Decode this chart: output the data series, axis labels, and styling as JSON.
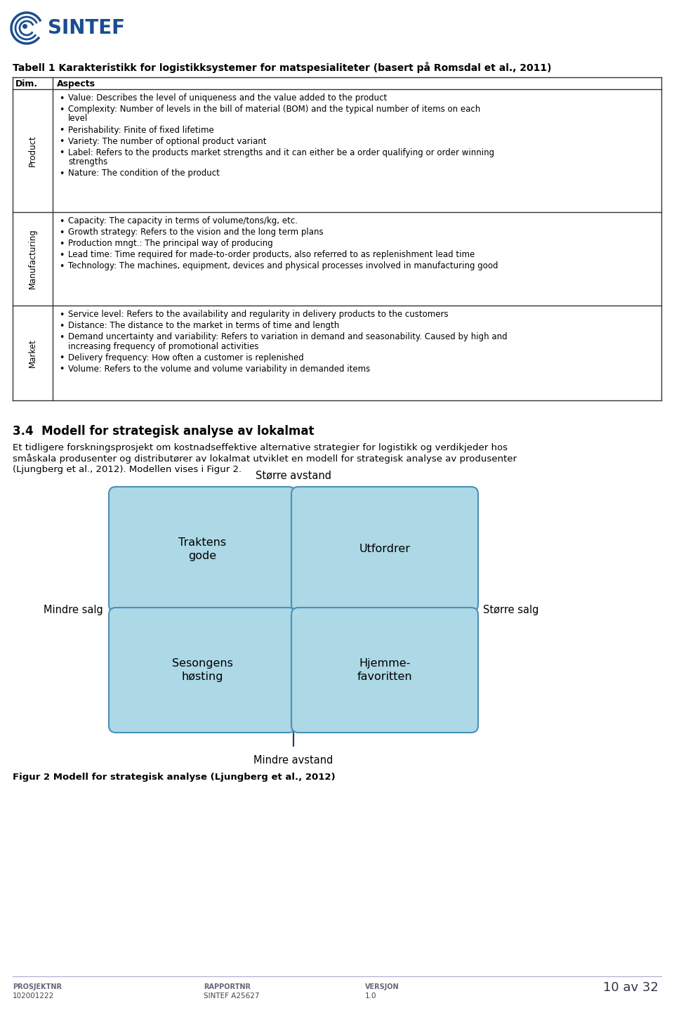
{
  "bg_color": "#ffffff",
  "page_width": 9.6,
  "page_height": 14.55,
  "table_title": "Tabell 1 Karakteristikk for logistikksystemer for matspesialiteter (basert på Romsdal et al., 2011)",
  "table_headers": [
    "Dim.",
    "Aspects"
  ],
  "table_rows": [
    {
      "dim": "Product",
      "items": [
        "Value: Describes the level of uniqueness and the value added to the product",
        "Complexity: Number of levels in the bill of material (BOM) and the typical number of items on each\nlevel",
        "Perishability: Finite of fixed lifetime",
        "Variety: The number of optional product variant",
        "Label: Refers to the products market strengths and it can either be a order qualifying or order winning\nstrengths",
        "Nature: The condition of the product"
      ]
    },
    {
      "dim": "Manufacturing",
      "items": [
        "Capacity: The capacity in terms of volume/tons/kg, etc.",
        "Growth strategy: Refers to the vision and the long term plans",
        "Production mngt.: The principal way of producing",
        "Lead time: Time required for made-to-order products, also referred to as replenishment lead time",
        "Technology: The machines, equipment, devices and physical processes involved in manufacturing good"
      ]
    },
    {
      "dim": "Market",
      "items": [
        "Service level: Refers to the availability and regularity in delivery products to the customers",
        "Distance: The distance to the market in terms of time and length",
        "Demand uncertainty and variability: Refers to variation in demand and seasonability. Caused by high and\nincreasing frequency of promotional activities",
        "Delivery frequency: How often a customer is replenished",
        "Volume: Refers to the volume and volume variability in demanded items"
      ]
    }
  ],
  "section_title": "3.4  Modell for strategisk analyse av lokalmat",
  "section_text": "Et tidligere forskningsprosjekt om kostnadseffektive alternative strategier for logistikk og verdikjeder hos\nsmåskala produsenter og distributører av lokalmat utviklet en modell for strategisk analyse av produsenter\n(Ljungberg et al., 2012). Modellen vises i Figur 2.",
  "quadrant_labels": {
    "top": "Større avstand",
    "bottom": "Mindre avstand",
    "left": "Mindre salg",
    "right": "Større salg"
  },
  "box_labels": [
    "Traktens\ngode",
    "Utfordrer",
    "Sesongens\nhøsting",
    "Hjemme-\nfavoritten"
  ],
  "box_facecolor": "#add8e6",
  "box_edgecolor": "#4a90b8",
  "figure_caption": "Figur 2 Modell for strategisk analyse (Ljungberg et al., 2012)",
  "footer_left1": "PROSJEKTNR",
  "footer_left2": "102001222",
  "footer_mid1": "RAPPORTNR",
  "footer_mid2": "SINTEF A25627",
  "footer_right1": "VERSJON",
  "footer_right2": "1.0",
  "footer_page": "10 av 32",
  "arrow_color": "#1a3a6b",
  "text_color": "#000000",
  "logo_color": "#1a4e8f"
}
